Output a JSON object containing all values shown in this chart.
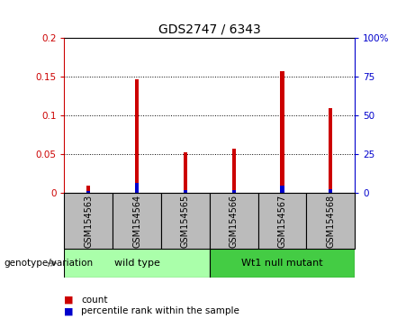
{
  "title": "GDS2747 / 6343",
  "samples": [
    "GSM154563",
    "GSM154564",
    "GSM154565",
    "GSM154566",
    "GSM154567",
    "GSM154568"
  ],
  "red_values": [
    0.01,
    0.147,
    0.053,
    0.057,
    0.158,
    0.11
  ],
  "blue_values": [
    0.002,
    0.013,
    0.004,
    0.004,
    0.009,
    0.005
  ],
  "ylim_left": [
    0,
    0.2
  ],
  "ylim_right": [
    0,
    100
  ],
  "yticks_left": [
    0,
    0.05,
    0.1,
    0.15,
    0.2
  ],
  "yticks_right": [
    0,
    25,
    50,
    75,
    100
  ],
  "ytick_labels_left": [
    "0",
    "0.05",
    "0.1",
    "0.15",
    "0.2"
  ],
  "ytick_labels_right": [
    "0",
    "25",
    "50",
    "75",
    "100%"
  ],
  "red_color": "#CC0000",
  "blue_color": "#0000CC",
  "bar_width": 0.08,
  "groups": [
    {
      "label": "wild type",
      "samples": [
        0,
        1,
        2
      ],
      "color": "#AAFFAA"
    },
    {
      "label": "Wt1 null mutant",
      "samples": [
        3,
        4,
        5
      ],
      "color": "#44CC44"
    }
  ],
  "group_label": "genotype/variation",
  "legend_items": [
    {
      "color": "#CC0000",
      "label": "count"
    },
    {
      "color": "#0000CC",
      "label": "percentile rank within the sample"
    }
  ],
  "bg_color": "#FFFFFF",
  "label_box_color": "#BBBBBB",
  "left_axis_color": "#CC0000",
  "right_axis_color": "#0000CC"
}
